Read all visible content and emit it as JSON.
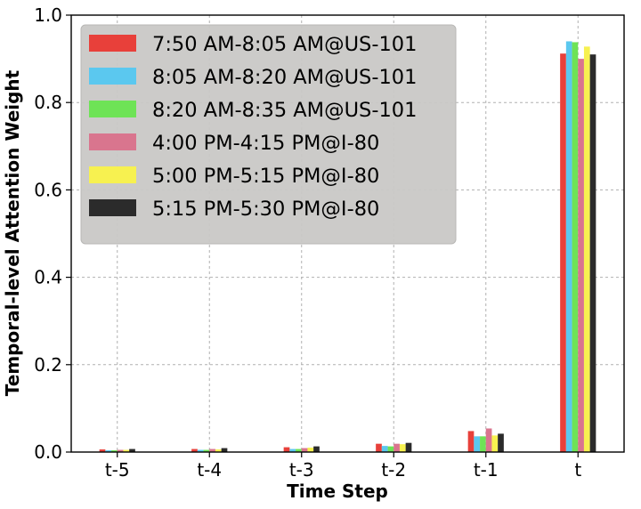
{
  "chart_data": {
    "type": "bar",
    "title": "",
    "xlabel": "Time Step",
    "ylabel": "Temporal-level Attention Weight",
    "categories": [
      "t-5",
      "t-4",
      "t-3",
      "t-2",
      "t-1",
      "t"
    ],
    "ylim": [
      0,
      1.0
    ],
    "yticks": [
      0.0,
      0.2,
      0.4,
      0.6,
      0.8,
      1.0
    ],
    "grid": true,
    "legend_position": "top-left",
    "series": [
      {
        "name": "7:50 AM-8:05 AM@US-101",
        "color": "#e8403a",
        "values": [
          0.006,
          0.007,
          0.011,
          0.019,
          0.048,
          0.912
        ]
      },
      {
        "name": "8:05 AM-8:20 AM@US-101",
        "color": "#5bc8ef",
        "values": [
          0.004,
          0.005,
          0.007,
          0.014,
          0.036,
          0.94
        ]
      },
      {
        "name": "8:20 AM-8:35 AM@US-101",
        "color": "#6ee356",
        "values": [
          0.004,
          0.005,
          0.007,
          0.013,
          0.036,
          0.938
        ]
      },
      {
        "name": "4:00 PM-4:15 PM@I-80",
        "color": "#d9758e",
        "values": [
          0.005,
          0.007,
          0.009,
          0.019,
          0.054,
          0.9
        ]
      },
      {
        "name": "5:00 PM-5:15 PM@I-80",
        "color": "#f7f150",
        "values": [
          0.005,
          0.006,
          0.01,
          0.018,
          0.038,
          0.928
        ]
      },
      {
        "name": "5:15 PM-5:30 PM@I-80",
        "color": "#2b2b2b",
        "values": [
          0.007,
          0.009,
          0.013,
          0.021,
          0.042,
          0.91
        ]
      }
    ]
  }
}
